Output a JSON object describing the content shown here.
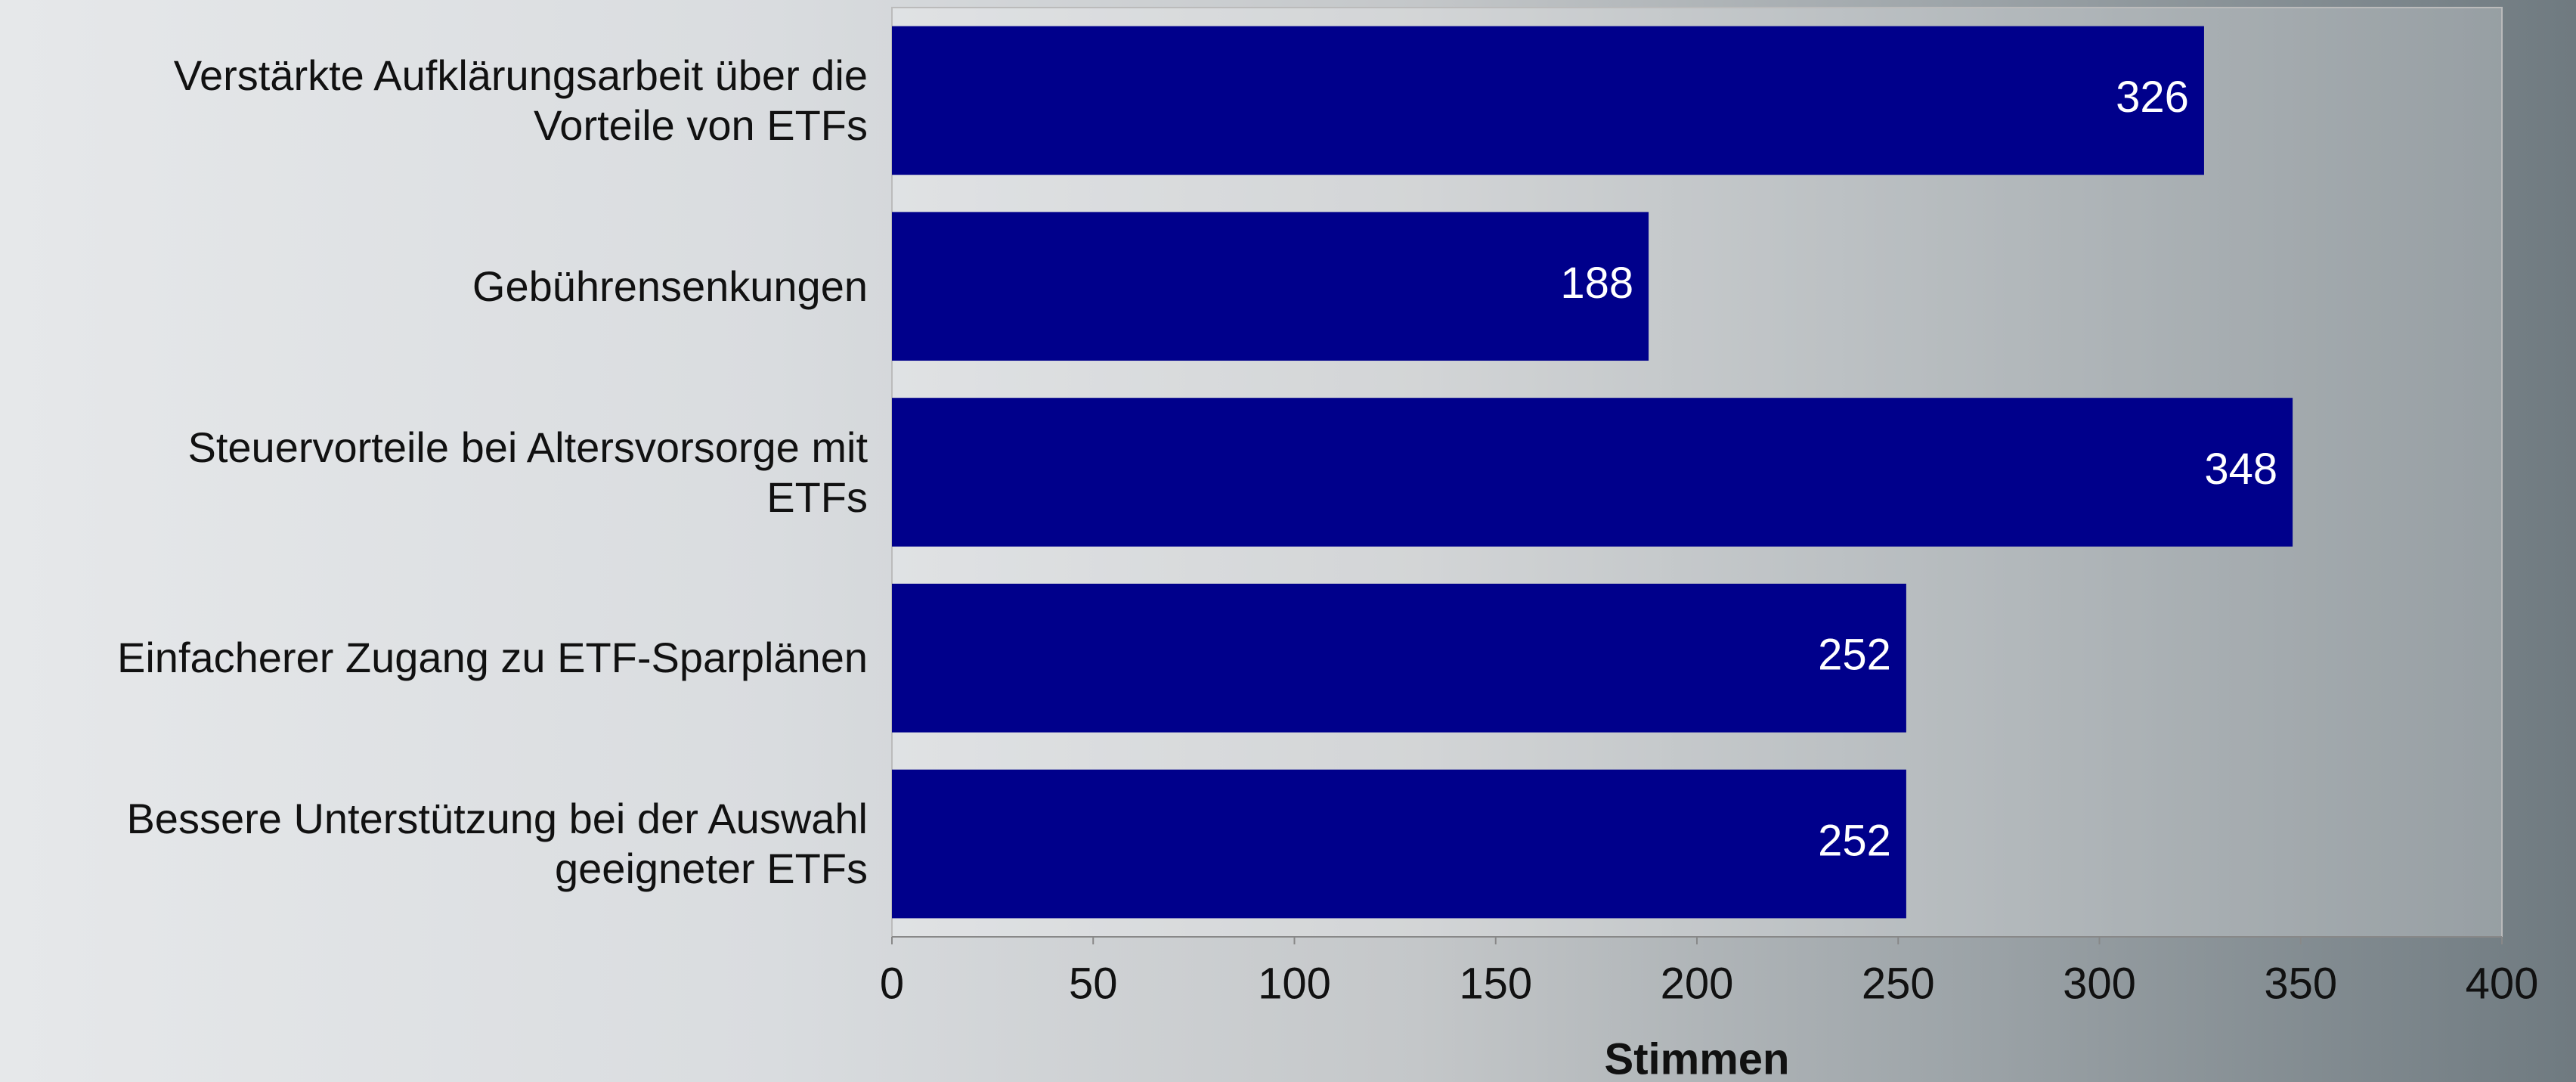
{
  "chart_data": {
    "type": "barh",
    "categories": [
      "Verstärkte Aufklärungsarbeit über die\nVorteile von ETFs",
      "Gebührensenkungen",
      "Steuervorteile bei Altersvorsorge mit\nETFs",
      "Einfacherer Zugang zu ETF-Sparplänen",
      "Bessere Unterstützung bei der Auswahl\ngeeigneter ETFs"
    ],
    "values": [
      326,
      188,
      348,
      252,
      252
    ],
    "color": "#00008b",
    "xlabel": "Stimmen",
    "xlim": [
      0,
      400
    ],
    "xticks": [
      0,
      50,
      100,
      150,
      200,
      250,
      300,
      350,
      400
    ]
  }
}
